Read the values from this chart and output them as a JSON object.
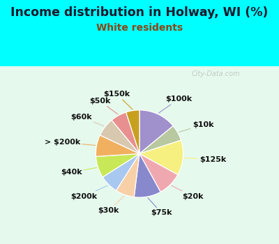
{
  "title": "Income distribution in Holway, WI (%)",
  "subtitle": "White residents",
  "background_cyan": "#00FFFF",
  "background_chart": "#dff0e8",
  "watermark": "City-Data.com",
  "title_color": "#1a1a2e",
  "subtitle_color": "#8b4513",
  "slices": [
    {
      "label": "$100k",
      "value": 14,
      "color": "#a090cc"
    },
    {
      "label": "$10k",
      "value": 6,
      "color": "#b8c8a0"
    },
    {
      "label": "$125k",
      "value": 13,
      "color": "#f5f080"
    },
    {
      "label": "$20k",
      "value": 9,
      "color": "#f0a8b0"
    },
    {
      "label": "$75k",
      "value": 10,
      "color": "#8888cc"
    },
    {
      "label": "$30k",
      "value": 7,
      "color": "#f8d0a8"
    },
    {
      "label": "$200k",
      "value": 7,
      "color": "#a8c8f0"
    },
    {
      "label": "$40k",
      "value": 8,
      "color": "#c8e858"
    },
    {
      "label": "> $200k",
      "value": 8,
      "color": "#f0b060"
    },
    {
      "label": "$60k",
      "value": 7,
      "color": "#d8c8b0"
    },
    {
      "label": "$50k",
      "value": 6,
      "color": "#e89090"
    },
    {
      "label": "$150k",
      "value": 5,
      "color": "#c8a020"
    }
  ],
  "label_fontsize": 8,
  "title_fontsize": 12.5,
  "subtitle_fontsize": 10
}
